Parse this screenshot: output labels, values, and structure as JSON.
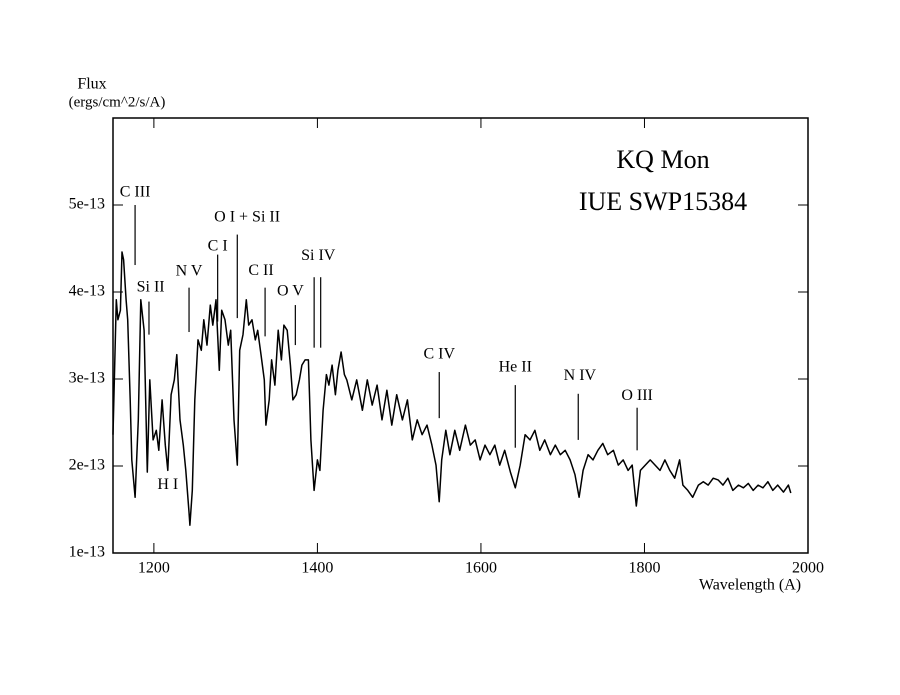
{
  "chart_data": {
    "type": "line",
    "title": "KQ Mon",
    "subtitle": "IUE SWP15384",
    "y_label": "Flux",
    "y_units": "(ergs/cm^2/s/A)",
    "x_label": "Wavelength (A)",
    "xlim": [
      1150,
      2000
    ],
    "xticks": [
      1200,
      1400,
      1600,
      1800,
      2000
    ],
    "ylim": [
      1e-13,
      6e-13
    ],
    "yticks": [
      {
        "value": 1e-13,
        "label": "1e-13"
      },
      {
        "value": 2e-13,
        "label": "2e-13"
      },
      {
        "value": 3e-13,
        "label": "3e-13"
      },
      {
        "value": 4e-13,
        "label": "4e-13"
      },
      {
        "value": 5e-13,
        "label": "5e-13"
      }
    ],
    "color": "#000000",
    "x": [
      1150,
      1154,
      1156,
      1159,
      1161,
      1163,
      1166,
      1168,
      1171,
      1173,
      1177,
      1181,
      1184,
      1188,
      1192,
      1195,
      1199,
      1203,
      1206,
      1210,
      1214,
      1217,
      1221,
      1225,
      1228,
      1232,
      1236,
      1239,
      1243,
      1244,
      1247,
      1250,
      1254,
      1258,
      1261,
      1265,
      1269,
      1272,
      1276,
      1280,
      1283,
      1287,
      1291,
      1294,
      1298,
      1302,
      1305,
      1309,
      1313,
      1316,
      1320,
      1324,
      1327,
      1331,
      1335,
      1337,
      1341,
      1344,
      1348,
      1352,
      1356,
      1359,
      1363,
      1367,
      1370,
      1374,
      1378,
      1381,
      1385,
      1389,
      1392,
      1396,
      1400,
      1403,
      1407,
      1411,
      1414,
      1418,
      1422,
      1425,
      1429,
      1433,
      1436,
      1442,
      1448,
      1455,
      1461,
      1467,
      1473,
      1479,
      1485,
      1491,
      1497,
      1504,
      1510,
      1516,
      1522,
      1528,
      1534,
      1540,
      1545,
      1549,
      1552,
      1557,
      1562,
      1568,
      1574,
      1581,
      1587,
      1593,
      1599,
      1605,
      1611,
      1617,
      1623,
      1629,
      1636,
      1642,
      1648,
      1654,
      1660,
      1666,
      1672,
      1678,
      1685,
      1691,
      1697,
      1703,
      1709,
      1715,
      1720,
      1725,
      1731,
      1737,
      1743,
      1749,
      1755,
      1762,
      1768,
      1774,
      1780,
      1785,
      1790,
      1795,
      1801,
      1807,
      1813,
      1819,
      1825,
      1831,
      1837,
      1843,
      1847,
      1853,
      1859,
      1866,
      1872,
      1878,
      1884,
      1890,
      1896,
      1902,
      1908,
      1915,
      1921,
      1927,
      1933,
      1939,
      1945,
      1951,
      1957,
      1963,
      1970,
      1976,
      1979
    ],
    "values": [
      2.36e-13,
      3.91e-13,
      3.68e-13,
      3.79e-13,
      4.46e-13,
      4.37e-13,
      3.91e-13,
      3.68e-13,
      2.76e-13,
      2.07e-13,
      1.64e-13,
      2.53e-13,
      3.91e-13,
      3.56e-13,
      1.93e-13,
      2.99e-13,
      2.3e-13,
      2.41e-13,
      2.18e-13,
      2.76e-13,
      2.24e-13,
      1.95e-13,
      2.82e-13,
      2.99e-13,
      3.28e-13,
      2.53e-13,
      2.24e-13,
      1.95e-13,
      1.47e-13,
      1.32e-13,
      1.72e-13,
      2.76e-13,
      3.45e-13,
      3.33e-13,
      3.68e-13,
      3.39e-13,
      3.85e-13,
      3.62e-13,
      3.91e-13,
      3.1e-13,
      3.79e-13,
      3.68e-13,
      3.39e-13,
      3.56e-13,
      2.53e-13,
      2.01e-13,
      3.33e-13,
      3.51e-13,
      3.91e-13,
      3.62e-13,
      3.68e-13,
      3.45e-13,
      3.56e-13,
      3.28e-13,
      2.99e-13,
      2.47e-13,
      2.76e-13,
      3.22e-13,
      2.93e-13,
      3.56e-13,
      3.22e-13,
      3.62e-13,
      3.56e-13,
      3.16e-13,
      2.76e-13,
      2.82e-13,
      2.99e-13,
      3.16e-13,
      3.22e-13,
      3.22e-13,
      2.3e-13,
      1.72e-13,
      2.07e-13,
      1.95e-13,
      2.64e-13,
      3.05e-13,
      2.93e-13,
      3.16e-13,
      2.82e-13,
      3.1e-13,
      3.31e-13,
      3.05e-13,
      2.99e-13,
      2.76e-13,
      2.99e-13,
      2.64e-13,
      2.99e-13,
      2.7e-13,
      2.93e-13,
      2.53e-13,
      2.87e-13,
      2.47e-13,
      2.82e-13,
      2.53e-13,
      2.76e-13,
      2.3e-13,
      2.53e-13,
      2.36e-13,
      2.47e-13,
      2.24e-13,
      2.01e-13,
      1.59e-13,
      2.07e-13,
      2.41e-13,
      2.13e-13,
      2.41e-13,
      2.18e-13,
      2.47e-13,
      2.24e-13,
      2.3e-13,
      2.07e-13,
      2.24e-13,
      2.13e-13,
      2.24e-13,
      2.01e-13,
      2.18e-13,
      1.93e-13,
      1.75e-13,
      2.01e-13,
      2.36e-13,
      2.3e-13,
      2.41e-13,
      2.18e-13,
      2.3e-13,
      2.13e-13,
      2.24e-13,
      2.13e-13,
      2.18e-13,
      2.07e-13,
      1.9e-13,
      1.64e-13,
      1.95e-13,
      2.13e-13,
      2.07e-13,
      2.18e-13,
      2.26e-13,
      2.13e-13,
      2.18e-13,
      2.01e-13,
      2.07e-13,
      1.95e-13,
      2.01e-13,
      1.54e-13,
      1.95e-13,
      2.01e-13,
      2.07e-13,
      2.01e-13,
      1.95e-13,
      2.07e-13,
      1.95e-13,
      1.86e-13,
      2.07e-13,
      1.78e-13,
      1.72e-13,
      1.64e-13,
      1.78e-13,
      1.82e-13,
      1.78e-13,
      1.86e-13,
      1.84e-13,
      1.78e-13,
      1.86e-13,
      1.72e-13,
      1.78e-13,
      1.75e-13,
      1.8e-13,
      1.72e-13,
      1.78e-13,
      1.75e-13,
      1.82e-13,
      1.72e-13,
      1.78e-13,
      1.7e-13,
      1.78e-13,
      1.69e-13
    ],
    "annotations": [
      {
        "text": "C III",
        "x": 1177,
        "y": 5.14e-13,
        "lines": [
          [
            1177,
            4.31e-13,
            5e-13
          ]
        ]
      },
      {
        "text": "Si II",
        "x": 1196,
        "y": 4.05e-13,
        "lines": [
          [
            1194,
            3.51e-13,
            3.89e-13
          ]
        ]
      },
      {
        "text": "N V",
        "x": 1243,
        "y": 4.23e-13,
        "lines": [
          [
            1243,
            3.54e-13,
            4.05e-13
          ]
        ]
      },
      {
        "text": "C I",
        "x": 1278,
        "y": 4.52e-13,
        "lines": [
          [
            1278,
            3.66e-13,
            4.43e-13
          ]
        ]
      },
      {
        "text": "O I + Si II",
        "x": 1314,
        "y": 4.85e-13,
        "lines": [
          [
            1302,
            3.7e-13,
            4.66e-13
          ]
        ]
      },
      {
        "text": "C II",
        "x": 1331,
        "y": 4.24e-13,
        "lines": [
          [
            1336,
            3.49e-13,
            4.05e-13
          ]
        ]
      },
      {
        "text": "O V",
        "x": 1367,
        "y": 4e-13,
        "lines": [
          [
            1373,
            3.39e-13,
            3.85e-13
          ]
        ]
      },
      {
        "text": "Si IV",
        "x": 1401,
        "y": 4.41e-13,
        "lines": [
          [
            1396,
            3.36e-13,
            4.17e-13
          ],
          [
            1404,
            3.36e-13,
            4.17e-13
          ]
        ]
      },
      {
        "text": "C IV",
        "x": 1549,
        "y": 3.28e-13,
        "lines": [
          [
            1549,
            2.55e-13,
            3.08e-13
          ]
        ]
      },
      {
        "text": "He II",
        "x": 1642,
        "y": 3.13e-13,
        "lines": [
          [
            1642,
            2.21e-13,
            2.93e-13
          ]
        ]
      },
      {
        "text": "N IV",
        "x": 1721,
        "y": 3.03e-13,
        "lines": [
          [
            1719,
            2.3e-13,
            2.83e-13
          ]
        ]
      },
      {
        "text": "O III",
        "x": 1791,
        "y": 2.8e-13,
        "lines": [
          [
            1791,
            2.18e-13,
            2.67e-13
          ]
        ]
      },
      {
        "text": "H I",
        "x": 1217,
        "y": 1.78e-13,
        "lines": []
      }
    ]
  }
}
